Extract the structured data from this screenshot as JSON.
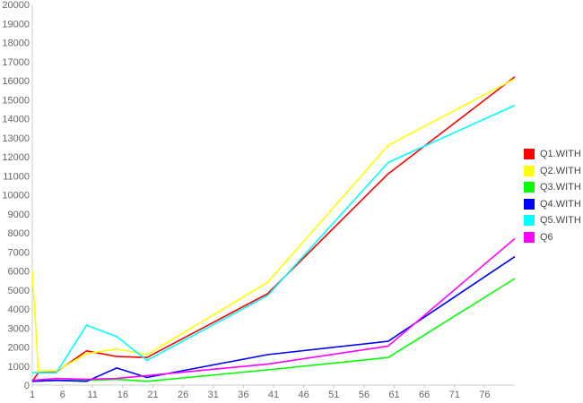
{
  "chart_data": {
    "type": "line",
    "title": "",
    "xlabel": "",
    "ylabel": "",
    "x_ticks": [
      1,
      6,
      11,
      16,
      21,
      26,
      31,
      36,
      41,
      46,
      51,
      56,
      61,
      66,
      71,
      76
    ],
    "xlim": [
      1,
      81
    ],
    "ylim": [
      0,
      20000
    ],
    "y_ticks": [
      0,
      1000,
      2000,
      3000,
      4000,
      5000,
      6000,
      7000,
      8000,
      9000,
      10000,
      11000,
      12000,
      13000,
      14000,
      15000,
      16000,
      17000,
      18000,
      19000,
      20000
    ],
    "grid": false,
    "legend_position": "right",
    "series": [
      {
        "name": "Q1.WITH",
        "color": "#ff0000",
        "points": [
          [
            1,
            200
          ],
          [
            2,
            650
          ],
          [
            5,
            700
          ],
          [
            10,
            1800
          ],
          [
            15,
            1500
          ],
          [
            20,
            1450
          ],
          [
            40,
            4800
          ],
          [
            60,
            11100
          ],
          [
            81,
            16200
          ]
        ]
      },
      {
        "name": "Q2.WITH",
        "color": "#ffff00",
        "points": [
          [
            1,
            6000
          ],
          [
            2,
            750
          ],
          [
            5,
            750
          ],
          [
            10,
            1650
          ],
          [
            15,
            1900
          ],
          [
            20,
            1600
          ],
          [
            40,
            5400
          ],
          [
            60,
            12600
          ],
          [
            81,
            16100
          ]
        ]
      },
      {
        "name": "Q3.WITH",
        "color": "#00ff00",
        "points": [
          [
            1,
            200
          ],
          [
            5,
            250
          ],
          [
            10,
            250
          ],
          [
            15,
            300
          ],
          [
            20,
            200
          ],
          [
            40,
            800
          ],
          [
            60,
            1450
          ],
          [
            81,
            5600
          ]
        ]
      },
      {
        "name": "Q4.WITH",
        "color": "#0000ff",
        "points": [
          [
            1,
            200
          ],
          [
            5,
            250
          ],
          [
            10,
            200
          ],
          [
            15,
            900
          ],
          [
            20,
            400
          ],
          [
            40,
            1600
          ],
          [
            60,
            2300
          ],
          [
            81,
            6750
          ]
        ]
      },
      {
        "name": "Q5.WITH",
        "color": "#00ffff",
        "points": [
          [
            1,
            650
          ],
          [
            5,
            650
          ],
          [
            10,
            3150
          ],
          [
            15,
            2550
          ],
          [
            20,
            1300
          ],
          [
            40,
            4700
          ],
          [
            60,
            11700
          ],
          [
            81,
            14700
          ]
        ]
      },
      {
        "name": "Q6",
        "color": "#ff00ff",
        "points": [
          [
            1,
            250
          ],
          [
            5,
            350
          ],
          [
            10,
            300
          ],
          [
            15,
            350
          ],
          [
            20,
            500
          ],
          [
            40,
            1100
          ],
          [
            60,
            2050
          ],
          [
            81,
            7700
          ]
        ]
      }
    ]
  }
}
